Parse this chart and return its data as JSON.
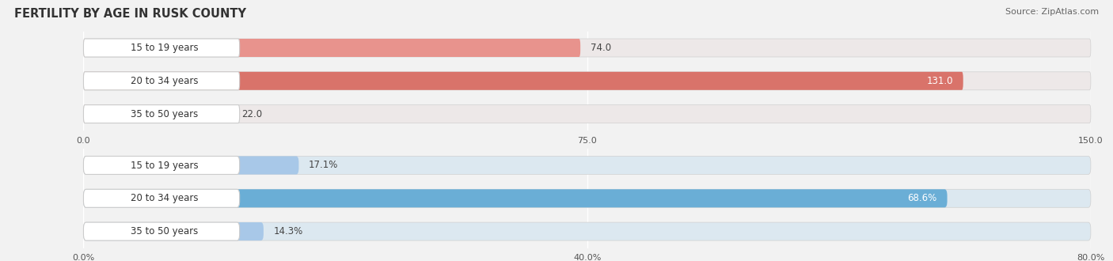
{
  "title": "Female Fertility by Age in Rusk County",
  "title_display": "FERTILITY BY AGE IN RUSK COUNTY",
  "source": "Source: ZipAtlas.com",
  "top_chart": {
    "categories": [
      "15 to 19 years",
      "20 to 34 years",
      "35 to 50 years"
    ],
    "values": [
      74.0,
      131.0,
      22.0
    ],
    "xlim": [
      0,
      150.0
    ],
    "xticks": [
      0.0,
      75.0,
      150.0
    ],
    "xtick_labels": [
      "0.0",
      "75.0",
      "150.0"
    ],
    "bar_face_colors": [
      "#e8938d",
      "#d9736a",
      "#e8a9a4"
    ],
    "bar_bg_color": "#ede8e8",
    "value_labels": [
      "74.0",
      "131.0",
      "22.0"
    ],
    "value_label_inside": [
      false,
      true,
      false
    ]
  },
  "bottom_chart": {
    "categories": [
      "15 to 19 years",
      "20 to 34 years",
      "35 to 50 years"
    ],
    "values": [
      17.1,
      68.6,
      14.3
    ],
    "xlim": [
      0,
      80.0
    ],
    "xticks": [
      0.0,
      40.0,
      80.0
    ],
    "xtick_labels": [
      "0.0%",
      "40.0%",
      "80.0%"
    ],
    "bar_face_colors": [
      "#a8c8e8",
      "#6aaed6",
      "#a8c8e8"
    ],
    "bar_bg_color": "#dce8f0",
    "value_labels": [
      "17.1%",
      "68.6%",
      "14.3%"
    ],
    "value_label_inside": [
      false,
      true,
      false
    ]
  },
  "bg_color": "#f2f2f2",
  "label_bg_color": "#ffffff",
  "bar_height": 0.55,
  "label_fontsize": 8.5,
  "tick_fontsize": 8,
  "title_fontsize": 10.5,
  "source_fontsize": 8
}
